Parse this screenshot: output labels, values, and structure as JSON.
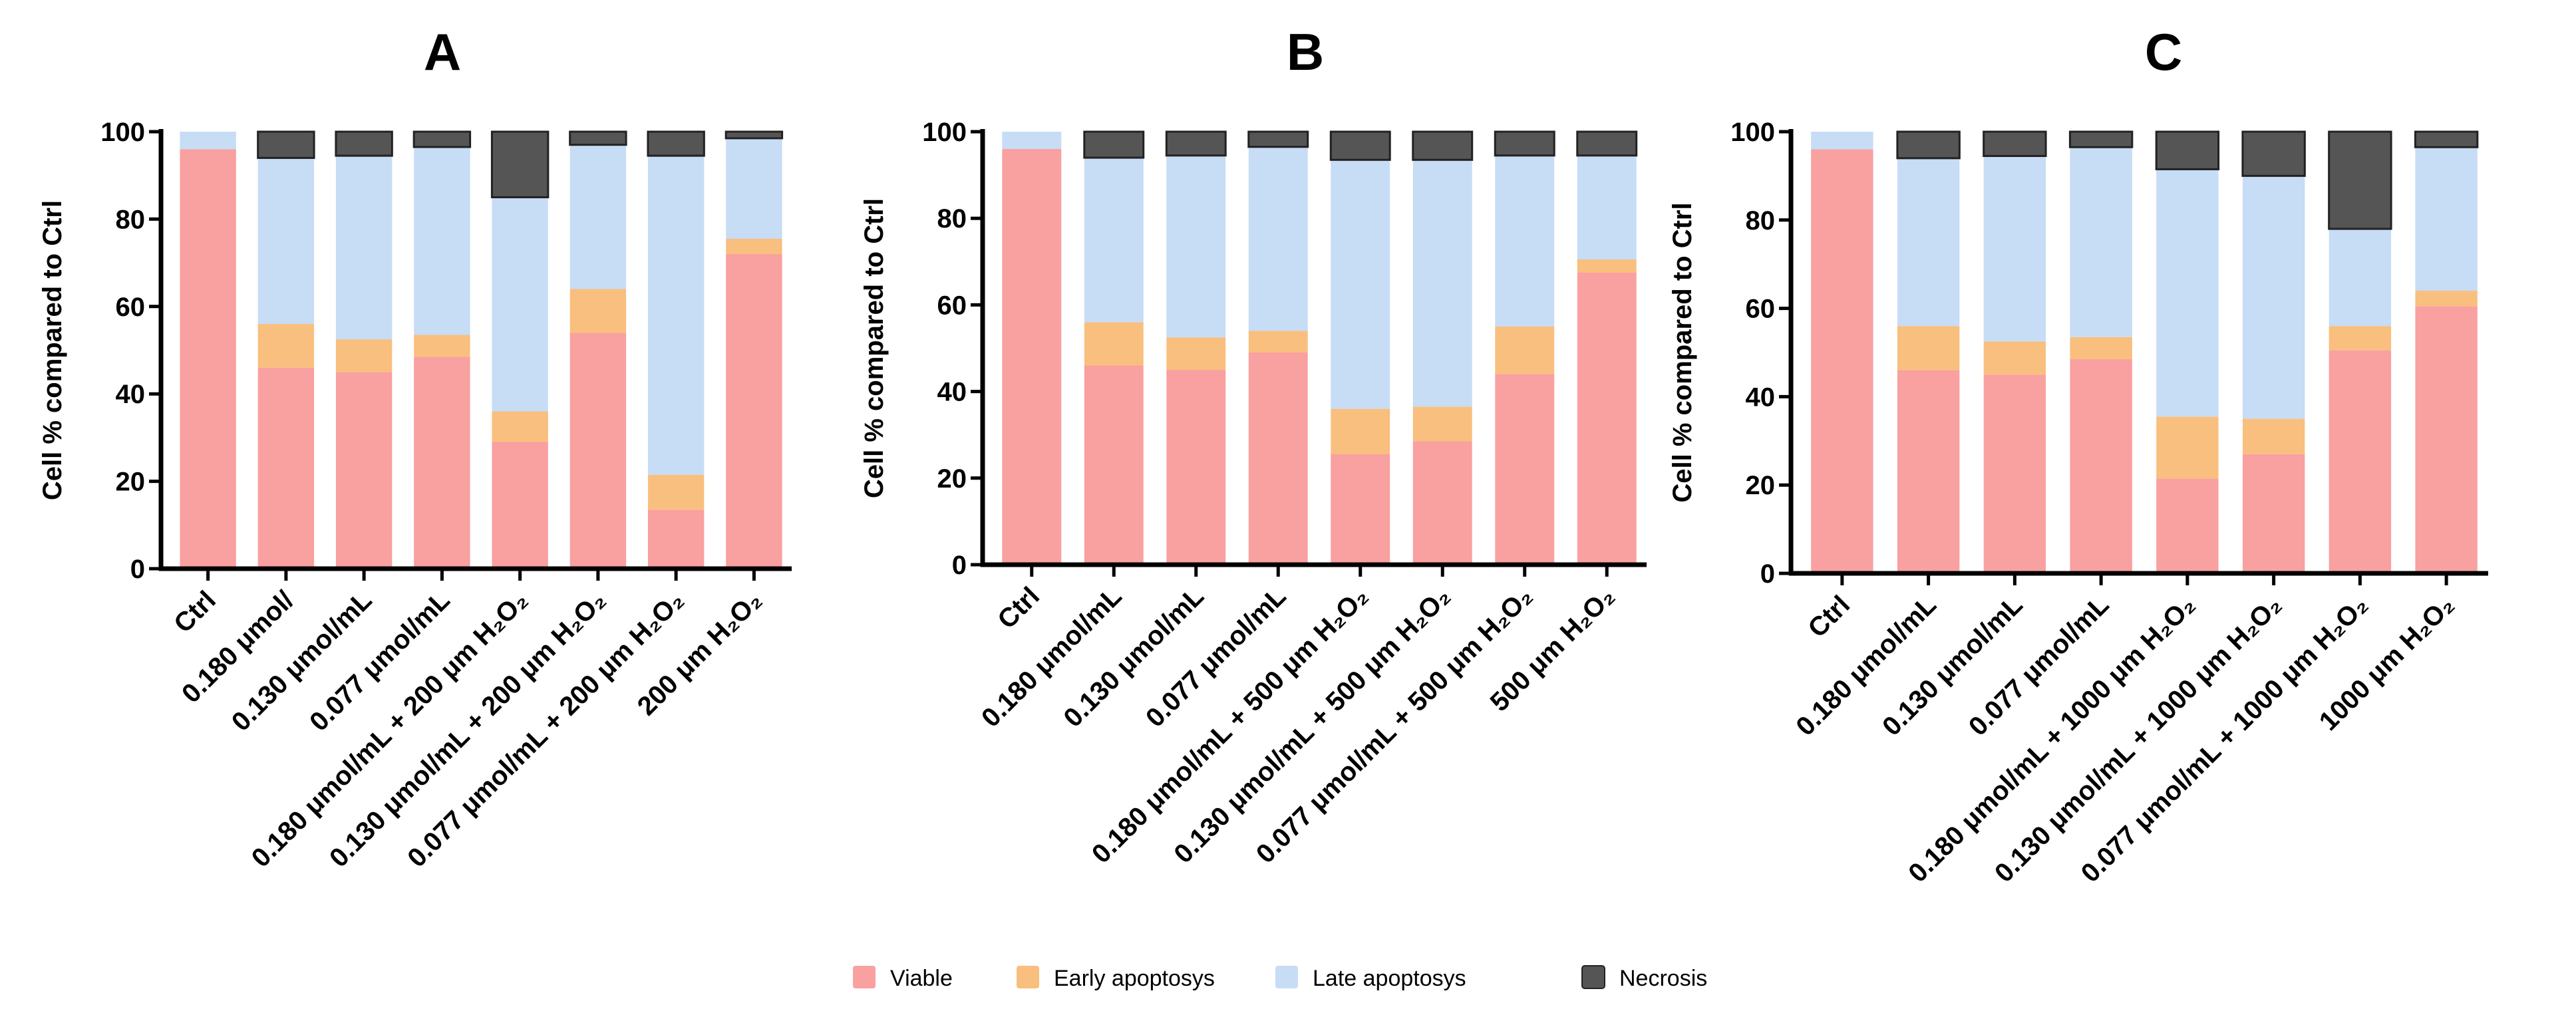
{
  "chart_data": [
    {
      "type": "bar",
      "stacked": true,
      "title": "A",
      "ylabel": "Cell % compared to Ctrl",
      "xlabel": "",
      "ylim": [
        0,
        100
      ],
      "yticks": [
        "0",
        "20",
        "40",
        "60",
        "80",
        "100"
      ],
      "categories": [
        "Ctrl",
        "0.180 μmol/",
        "0.130 μmol/mL",
        "0.077 μmol/mL",
        "0.180 μmol/mL + 200 μm H₂O₂",
        "0.130 μmol/mL + 200 μm H₂O₂",
        "0.077 μmol/mL + 200 μm H₂O₂",
        "200 μm H₂O₂"
      ],
      "series": [
        {
          "name": "Viable",
          "values": [
            96,
            46,
            45,
            48.5,
            29,
            54,
            13.5,
            72
          ]
        },
        {
          "name": "Early apoptosys",
          "values": [
            0,
            10,
            7.5,
            5,
            7,
            10,
            8,
            3.5
          ]
        },
        {
          "name": "Late apoptosys",
          "values": [
            4,
            38,
            42,
            43,
            49,
            33,
            73,
            23
          ]
        },
        {
          "name": "Necrosis",
          "values": [
            0,
            6,
            5.5,
            3.5,
            15,
            3,
            5.5,
            1.5
          ]
        }
      ]
    },
    {
      "type": "bar",
      "stacked": true,
      "title": "B",
      "ylabel": "Cell % compared to Ctrl",
      "xlabel": "",
      "ylim": [
        0,
        100
      ],
      "yticks": [
        "0",
        "20",
        "40",
        "60",
        "80",
        "100"
      ],
      "categories": [
        "Ctrl",
        "0.180 μmol/mL",
        "0.130 μmol/mL",
        "0.077 μmol/mL",
        "0.180 μmol/mL + 500 μm H₂O₂",
        "0.130 μmol/mL + 500 μm H₂O₂",
        "0.077 μmol/mL + 500 μm H₂O₂",
        "500 μm H₂O₂"
      ],
      "series": [
        {
          "name": "Viable",
          "values": [
            96,
            46,
            45,
            49,
            25.5,
            28.5,
            44,
            67.5
          ]
        },
        {
          "name": "Early apoptosys",
          "values": [
            0,
            10,
            7.5,
            5,
            10.5,
            8,
            11,
            3
          ]
        },
        {
          "name": "Late apoptosys",
          "values": [
            4,
            38,
            42,
            42.5,
            57.5,
            57,
            39.5,
            24
          ]
        },
        {
          "name": "Necrosis",
          "values": [
            0,
            6,
            5.5,
            3.5,
            6.5,
            6.5,
            5.5,
            5.5
          ]
        }
      ]
    },
    {
      "type": "bar",
      "stacked": true,
      "title": "C",
      "ylabel": "Cell % compared to Ctrl",
      "xlabel": "",
      "ylim": [
        0,
        100
      ],
      "yticks": [
        "0",
        "20",
        "40",
        "60",
        "80",
        "100"
      ],
      "categories": [
        "Ctrl",
        "0.180 μmol/mL",
        "0.130 μmol/mL",
        "0.077 μmol/mL",
        "0.180 μmol/mL + 1000 μm H₂O₂",
        "0.130 μmol/mL + 1000 μm H₂O₂",
        "0.077 μmol/mL + 1000 μm H₂O₂",
        "1000 μm H₂O₂"
      ],
      "series": [
        {
          "name": "Viable",
          "values": [
            96,
            46,
            45,
            48.5,
            21.5,
            27,
            50.5,
            60.5
          ]
        },
        {
          "name": "Early apoptosys",
          "values": [
            0,
            10,
            7.5,
            5,
            14,
            8,
            5.5,
            3.5
          ]
        },
        {
          "name": "Late apoptosys",
          "values": [
            4,
            38,
            42,
            43,
            56,
            55,
            22,
            32.5
          ]
        },
        {
          "name": "Necrosis",
          "values": [
            0,
            6,
            5.5,
            3.5,
            8.5,
            10,
            22,
            3.5
          ]
        }
      ]
    }
  ],
  "legend": {
    "placement": "bottom-center",
    "items": [
      {
        "label": "Viable",
        "color": "#f9a0a0"
      },
      {
        "label": "Early apoptosys",
        "color": "#f9bf7e"
      },
      {
        "label": "Late apoptosys",
        "color": "#c7dcf5"
      },
      {
        "label": "Necrosis",
        "color": "#555555"
      }
    ]
  }
}
